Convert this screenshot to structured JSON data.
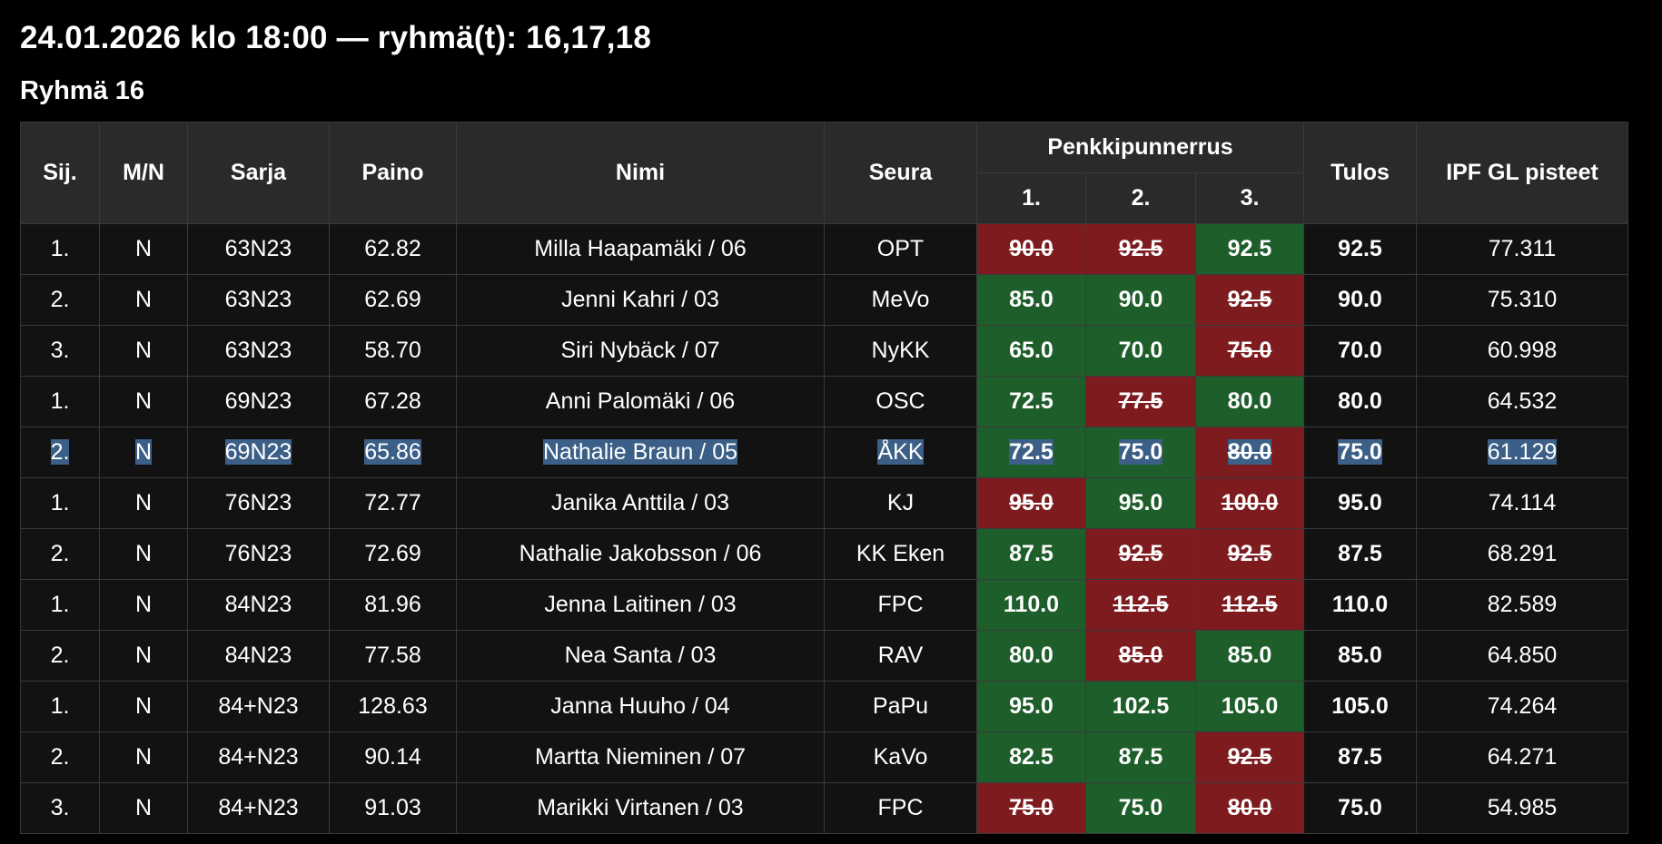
{
  "page": {
    "title": "24.01.2026 klo 18:00 — ryhmä(t): 16,17,18",
    "group_title": "Ryhmä 16"
  },
  "colors": {
    "background": "#000000",
    "header_bg": "#2a2a2a",
    "row_bg": "#121212",
    "good_lift": "#1e5e2a",
    "failed_lift": "#7d1b1e",
    "selection": "#3b5f86"
  },
  "table": {
    "headers": {
      "sij": "Sij.",
      "mn": "M/N",
      "sarja": "Sarja",
      "paino": "Paino",
      "nimi": "Nimi",
      "seura": "Seura",
      "lift": "Penkkipunnerrus",
      "a1": "1.",
      "a2": "2.",
      "a3": "3.",
      "tulos": "Tulos",
      "ipf": "IPF GL pisteet"
    },
    "rows": [
      {
        "sij": "1.",
        "mn": "N",
        "sarja": "63N23",
        "paino": "62.82",
        "nimi": "Milla Haapamäki / 06",
        "seura": "OPT",
        "a1": {
          "v": "90.0",
          "ok": false
        },
        "a2": {
          "v": "92.5",
          "ok": false
        },
        "a3": {
          "v": "92.5",
          "ok": true
        },
        "tulos": "92.5",
        "ipf": "77.311"
      },
      {
        "sij": "2.",
        "mn": "N",
        "sarja": "63N23",
        "paino": "62.69",
        "nimi": "Jenni Kahri / 03",
        "seura": "MeVo",
        "a1": {
          "v": "85.0",
          "ok": true
        },
        "a2": {
          "v": "90.0",
          "ok": true
        },
        "a3": {
          "v": "92.5",
          "ok": false
        },
        "tulos": "90.0",
        "ipf": "75.310"
      },
      {
        "sij": "3.",
        "mn": "N",
        "sarja": "63N23",
        "paino": "58.70",
        "nimi": "Siri Nybäck / 07",
        "seura": "NyKK",
        "a1": {
          "v": "65.0",
          "ok": true
        },
        "a2": {
          "v": "70.0",
          "ok": true
        },
        "a3": {
          "v": "75.0",
          "ok": false
        },
        "tulos": "70.0",
        "ipf": "60.998"
      },
      {
        "sij": "1.",
        "mn": "N",
        "sarja": "69N23",
        "paino": "67.28",
        "nimi": "Anni Palomäki / 06",
        "seura": "OSC",
        "a1": {
          "v": "72.5",
          "ok": true
        },
        "a2": {
          "v": "77.5",
          "ok": false
        },
        "a3": {
          "v": "80.0",
          "ok": true
        },
        "tulos": "80.0",
        "ipf": "64.532"
      },
      {
        "sij": "2.",
        "mn": "N",
        "sarja": "69N23",
        "paino": "65.86",
        "nimi": "Nathalie Braun / 05",
        "seura": "ÅKK",
        "a1": {
          "v": "72.5",
          "ok": true
        },
        "a2": {
          "v": "75.0",
          "ok": true
        },
        "a3": {
          "v": "80.0",
          "ok": false
        },
        "tulos": "75.0",
        "ipf": "61.129",
        "selected": true
      },
      {
        "sij": "1.",
        "mn": "N",
        "sarja": "76N23",
        "paino": "72.77",
        "nimi": "Janika Anttila / 03",
        "seura": "KJ",
        "a1": {
          "v": "95.0",
          "ok": false
        },
        "a2": {
          "v": "95.0",
          "ok": true
        },
        "a3": {
          "v": "100.0",
          "ok": false
        },
        "tulos": "95.0",
        "ipf": "74.114"
      },
      {
        "sij": "2.",
        "mn": "N",
        "sarja": "76N23",
        "paino": "72.69",
        "nimi": "Nathalie Jakobsson / 06",
        "seura": "KK Eken",
        "a1": {
          "v": "87.5",
          "ok": true
        },
        "a2": {
          "v": "92.5",
          "ok": false
        },
        "a3": {
          "v": "92.5",
          "ok": false
        },
        "tulos": "87.5",
        "ipf": "68.291"
      },
      {
        "sij": "1.",
        "mn": "N",
        "sarja": "84N23",
        "paino": "81.96",
        "nimi": "Jenna Laitinen / 03",
        "seura": "FPC",
        "a1": {
          "v": "110.0",
          "ok": true
        },
        "a2": {
          "v": "112.5",
          "ok": false
        },
        "a3": {
          "v": "112.5",
          "ok": false
        },
        "tulos": "110.0",
        "ipf": "82.589"
      },
      {
        "sij": "2.",
        "mn": "N",
        "sarja": "84N23",
        "paino": "77.58",
        "nimi": "Nea Santa / 03",
        "seura": "RAV",
        "a1": {
          "v": "80.0",
          "ok": true
        },
        "a2": {
          "v": "85.0",
          "ok": false
        },
        "a3": {
          "v": "85.0",
          "ok": true
        },
        "tulos": "85.0",
        "ipf": "64.850"
      },
      {
        "sij": "1.",
        "mn": "N",
        "sarja": "84+N23",
        "paino": "128.63",
        "nimi": "Janna Huuho / 04",
        "seura": "PaPu",
        "a1": {
          "v": "95.0",
          "ok": true
        },
        "a2": {
          "v": "102.5",
          "ok": true
        },
        "a3": {
          "v": "105.0",
          "ok": true
        },
        "tulos": "105.0",
        "ipf": "74.264"
      },
      {
        "sij": "2.",
        "mn": "N",
        "sarja": "84+N23",
        "paino": "90.14",
        "nimi": "Martta Nieminen / 07",
        "seura": "KaVo",
        "a1": {
          "v": "82.5",
          "ok": true
        },
        "a2": {
          "v": "87.5",
          "ok": true
        },
        "a3": {
          "v": "92.5",
          "ok": false
        },
        "tulos": "87.5",
        "ipf": "64.271"
      },
      {
        "sij": "3.",
        "mn": "N",
        "sarja": "84+N23",
        "paino": "91.03",
        "nimi": "Marikki Virtanen / 03",
        "seura": "FPC",
        "a1": {
          "v": "75.0",
          "ok": false
        },
        "a2": {
          "v": "75.0",
          "ok": true
        },
        "a3": {
          "v": "80.0",
          "ok": false
        },
        "tulos": "75.0",
        "ipf": "54.985"
      }
    ]
  }
}
